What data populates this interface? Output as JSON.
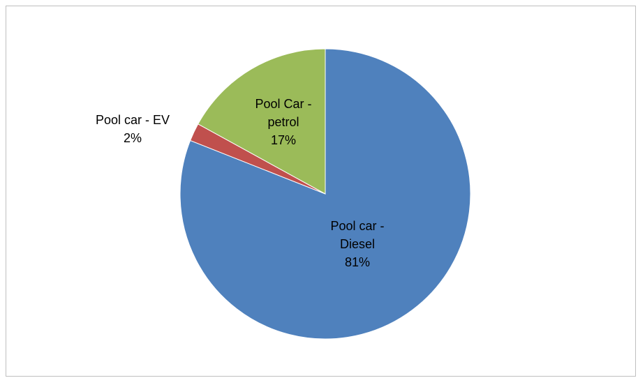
{
  "chart_data": {
    "type": "pie",
    "categories": [
      "Pool car - Diesel",
      "Pool car - EV",
      "Pool Car - petrol"
    ],
    "values": [
      81,
      2,
      17
    ],
    "value_labels": [
      "81%",
      "2%",
      "17%"
    ],
    "colors": [
      "#4f81bd",
      "#c0504d",
      "#9bbb59"
    ],
    "start_angle": 0,
    "direction": "clockwise"
  }
}
